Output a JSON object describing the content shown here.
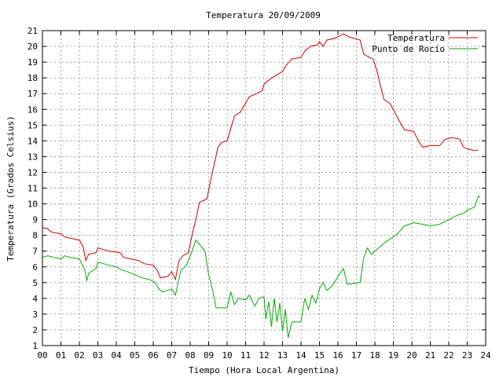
{
  "chart_data": {
    "type": "line",
    "title": "Temperatura 20/09/2009",
    "xlabel": "Tiempo (Hora Local Argentina)",
    "ylabel": "Temperatura (Grados Celsius)",
    "xlim": [
      0,
      24
    ],
    "ylim": [
      1,
      21
    ],
    "x_ticks": [
      "00",
      "01",
      "02",
      "03",
      "04",
      "05",
      "06",
      "07",
      "08",
      "09",
      "10",
      "11",
      "12",
      "13",
      "14",
      "15",
      "16",
      "17",
      "18",
      "19",
      "20",
      "21",
      "22",
      "23",
      "24"
    ],
    "y_ticks": [
      1,
      2,
      3,
      4,
      5,
      6,
      7,
      8,
      9,
      10,
      11,
      12,
      13,
      14,
      15,
      16,
      17,
      18,
      19,
      20,
      21
    ],
    "grid": true,
    "legend_position": "top-right",
    "series": [
      {
        "name": "Temperatura",
        "color": "#cc0000",
        "points": [
          [
            0.0,
            8.5
          ],
          [
            0.3,
            8.4
          ],
          [
            0.5,
            8.2
          ],
          [
            1.0,
            8.1
          ],
          [
            1.2,
            7.9
          ],
          [
            1.6,
            7.8
          ],
          [
            2.0,
            7.7
          ],
          [
            2.2,
            7.3
          ],
          [
            2.35,
            6.4
          ],
          [
            2.5,
            6.8
          ],
          [
            2.9,
            6.9
          ],
          [
            3.0,
            7.2
          ],
          [
            3.3,
            7.1
          ],
          [
            3.6,
            7.0
          ],
          [
            4.2,
            6.9
          ],
          [
            4.4,
            6.6
          ],
          [
            4.8,
            6.5
          ],
          [
            5.2,
            6.4
          ],
          [
            5.5,
            6.2
          ],
          [
            6.0,
            6.1
          ],
          [
            6.2,
            5.8
          ],
          [
            6.4,
            5.3
          ],
          [
            6.8,
            5.4
          ],
          [
            7.0,
            5.7
          ],
          [
            7.2,
            5.2
          ],
          [
            7.4,
            6.4
          ],
          [
            7.6,
            6.7
          ],
          [
            7.9,
            6.9
          ],
          [
            8.1,
            8.0
          ],
          [
            8.3,
            9.0
          ],
          [
            8.5,
            10.1
          ],
          [
            8.9,
            10.3
          ],
          [
            9.2,
            12.0
          ],
          [
            9.5,
            13.6
          ],
          [
            9.7,
            13.9
          ],
          [
            10.0,
            14.0
          ],
          [
            10.2,
            14.8
          ],
          [
            10.4,
            15.6
          ],
          [
            10.7,
            15.8
          ],
          [
            11.0,
            16.4
          ],
          [
            11.2,
            16.8
          ],
          [
            11.6,
            17.0
          ],
          [
            11.9,
            17.2
          ],
          [
            12.0,
            17.6
          ],
          [
            12.3,
            17.9
          ],
          [
            12.7,
            18.2
          ],
          [
            13.0,
            18.4
          ],
          [
            13.2,
            18.8
          ],
          [
            13.5,
            19.2
          ],
          [
            14.0,
            19.3
          ],
          [
            14.2,
            19.7
          ],
          [
            14.5,
            20.0
          ],
          [
            14.9,
            20.1
          ],
          [
            15.0,
            20.3
          ],
          [
            15.2,
            20.0
          ],
          [
            15.4,
            20.4
          ],
          [
            15.8,
            20.5
          ],
          [
            16.0,
            20.6
          ],
          [
            16.3,
            20.8
          ],
          [
            16.6,
            20.6
          ],
          [
            16.9,
            20.5
          ],
          [
            17.2,
            20.4
          ],
          [
            17.4,
            19.5
          ],
          [
            17.7,
            19.3
          ],
          [
            17.9,
            19.2
          ],
          [
            18.1,
            18.5
          ],
          [
            18.3,
            17.5
          ],
          [
            18.5,
            16.6
          ],
          [
            18.8,
            16.4
          ],
          [
            19.0,
            16.0
          ],
          [
            19.3,
            15.3
          ],
          [
            19.6,
            14.7
          ],
          [
            20.1,
            14.6
          ],
          [
            20.4,
            13.9
          ],
          [
            20.6,
            13.6
          ],
          [
            21.0,
            13.7
          ],
          [
            21.5,
            13.7
          ],
          [
            21.8,
            14.1
          ],
          [
            22.2,
            14.2
          ],
          [
            22.6,
            14.1
          ],
          [
            22.8,
            13.6
          ],
          [
            23.0,
            13.5
          ],
          [
            23.3,
            13.4
          ],
          [
            23.6,
            13.4
          ]
        ]
      },
      {
        "name": "Punto de Rocío",
        "color": "#00aa00",
        "points": [
          [
            0.0,
            6.6
          ],
          [
            0.3,
            6.7
          ],
          [
            0.6,
            6.6
          ],
          [
            1.0,
            6.5
          ],
          [
            1.2,
            6.7
          ],
          [
            1.5,
            6.6
          ],
          [
            2.0,
            6.5
          ],
          [
            2.3,
            5.8
          ],
          [
            2.4,
            5.1
          ],
          [
            2.5,
            5.6
          ],
          [
            2.9,
            5.9
          ],
          [
            3.0,
            6.3
          ],
          [
            3.3,
            6.2
          ],
          [
            3.6,
            6.1
          ],
          [
            4.0,
            6.0
          ],
          [
            4.3,
            5.8
          ],
          [
            4.6,
            5.7
          ],
          [
            5.0,
            5.5
          ],
          [
            5.4,
            5.3
          ],
          [
            5.8,
            5.2
          ],
          [
            6.1,
            5.0
          ],
          [
            6.3,
            4.6
          ],
          [
            6.5,
            4.4
          ],
          [
            7.0,
            4.6
          ],
          [
            7.2,
            4.2
          ],
          [
            7.35,
            5.0
          ],
          [
            7.5,
            5.8
          ],
          [
            7.8,
            6.1
          ],
          [
            8.1,
            7.0
          ],
          [
            8.3,
            7.7
          ],
          [
            8.6,
            7.3
          ],
          [
            8.8,
            7.0
          ],
          [
            9.0,
            5.5
          ],
          [
            9.2,
            4.6
          ],
          [
            9.4,
            3.4
          ],
          [
            10.0,
            3.4
          ],
          [
            10.2,
            4.4
          ],
          [
            10.4,
            3.6
          ],
          [
            10.6,
            4.0
          ],
          [
            11.0,
            3.9
          ],
          [
            11.2,
            4.2
          ],
          [
            11.5,
            3.5
          ],
          [
            11.7,
            4.0
          ],
          [
            12.0,
            4.1
          ],
          [
            12.1,
            2.7
          ],
          [
            12.25,
            3.8
          ],
          [
            12.4,
            2.2
          ],
          [
            12.55,
            4.0
          ],
          [
            12.7,
            2.5
          ],
          [
            12.85,
            3.7
          ],
          [
            13.0,
            1.9
          ],
          [
            13.15,
            3.3
          ],
          [
            13.3,
            1.5
          ],
          [
            13.5,
            2.5
          ],
          [
            14.0,
            2.5
          ],
          [
            14.2,
            4.0
          ],
          [
            14.4,
            3.3
          ],
          [
            14.6,
            4.2
          ],
          [
            14.8,
            3.7
          ],
          [
            15.0,
            4.6
          ],
          [
            15.2,
            5.0
          ],
          [
            15.4,
            4.5
          ],
          [
            15.7,
            4.8
          ],
          [
            16.0,
            5.4
          ],
          [
            16.3,
            5.9
          ],
          [
            16.5,
            4.9
          ],
          [
            17.2,
            5.0
          ],
          [
            17.4,
            6.6
          ],
          [
            17.6,
            7.2
          ],
          [
            17.8,
            6.8
          ],
          [
            18.0,
            7.0
          ],
          [
            18.3,
            7.3
          ],
          [
            18.6,
            7.6
          ],
          [
            19.0,
            7.9
          ],
          [
            19.3,
            8.2
          ],
          [
            19.6,
            8.6
          ],
          [
            20.1,
            8.8
          ],
          [
            20.6,
            8.7
          ],
          [
            21.0,
            8.6
          ],
          [
            21.5,
            8.7
          ],
          [
            22.0,
            9.0
          ],
          [
            22.5,
            9.3
          ],
          [
            22.8,
            9.4
          ],
          [
            23.0,
            9.6
          ],
          [
            23.4,
            9.8
          ],
          [
            23.6,
            10.5
          ],
          [
            23.7,
            10.4
          ]
        ]
      }
    ]
  }
}
